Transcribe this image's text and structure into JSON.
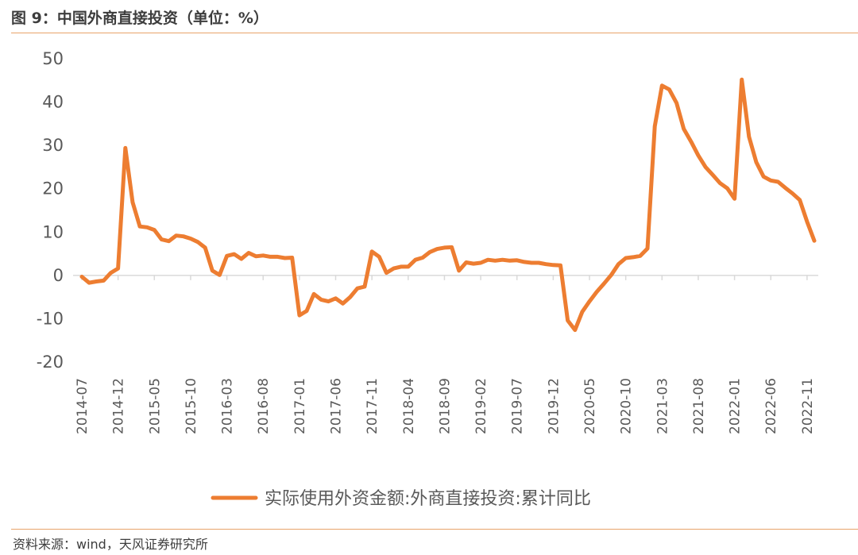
{
  "header": {
    "title": "图 9：中国外商直接投资（单位：%）"
  },
  "footer": {
    "source": "资料来源：wind，天风证券研究所"
  },
  "colors": {
    "line": "#ed7d31",
    "accent_rule": "#e8a46a",
    "axis": "#d9d9d9",
    "text": "#595959"
  },
  "chart_data": {
    "type": "line",
    "title": "",
    "xlabel": "",
    "ylabel": "",
    "ylim": [
      -20,
      50
    ],
    "yticks": [
      -20,
      -10,
      0,
      10,
      20,
      30,
      40,
      50
    ],
    "xtick_labels": [
      "2014-07",
      "2014-12",
      "2015-05",
      "2015-10",
      "2016-03",
      "2016-08",
      "2017-01",
      "2017-06",
      "2017-11",
      "2018-04",
      "2018-09",
      "2019-02",
      "2019-07",
      "2019-12",
      "2020-05",
      "2020-10",
      "2021-03",
      "2021-08",
      "2022-01",
      "2022-06",
      "2022-11"
    ],
    "grid": false,
    "legend_position": "bottom",
    "x": [
      "2014-07",
      "2014-08",
      "2014-09",
      "2014-10",
      "2014-11",
      "2014-12",
      "2015-01",
      "2015-02",
      "2015-03",
      "2015-04",
      "2015-05",
      "2015-06",
      "2015-07",
      "2015-08",
      "2015-09",
      "2015-10",
      "2015-11",
      "2015-12",
      "2016-01",
      "2016-02",
      "2016-03",
      "2016-04",
      "2016-05",
      "2016-06",
      "2016-07",
      "2016-08",
      "2016-09",
      "2016-10",
      "2016-11",
      "2016-12",
      "2017-01",
      "2017-02",
      "2017-03",
      "2017-04",
      "2017-05",
      "2017-06",
      "2017-07",
      "2017-08",
      "2017-09",
      "2017-10",
      "2017-11",
      "2017-12",
      "2018-01",
      "2018-02",
      "2018-03",
      "2018-04",
      "2018-05",
      "2018-06",
      "2018-07",
      "2018-08",
      "2018-09",
      "2018-10",
      "2018-11",
      "2018-12",
      "2019-01",
      "2019-02",
      "2019-03",
      "2019-04",
      "2019-05",
      "2019-06",
      "2019-07",
      "2019-08",
      "2019-09",
      "2019-10",
      "2019-11",
      "2019-12",
      "2020-01",
      "2020-02",
      "2020-03",
      "2020-04",
      "2020-05",
      "2020-06",
      "2020-07",
      "2020-08",
      "2020-09",
      "2020-10",
      "2020-11",
      "2020-12",
      "2021-01",
      "2021-02",
      "2021-03",
      "2021-04",
      "2021-05",
      "2021-06",
      "2021-07",
      "2021-08",
      "2021-09",
      "2021-10",
      "2021-11",
      "2021-12",
      "2022-01",
      "2022-02",
      "2022-03",
      "2022-04",
      "2022-05",
      "2022-06",
      "2022-07",
      "2022-08",
      "2022-09",
      "2022-10",
      "2022-11",
      "2022-12"
    ],
    "series": [
      {
        "name": "实际使用外资金额:外商直接投资:累计同比",
        "color": "#ed7d31",
        "values": [
          -0.3,
          -1.7,
          -1.4,
          -1.2,
          0.6,
          1.6,
          29.4,
          16.9,
          11.3,
          11.1,
          10.5,
          8.3,
          7.9,
          9.2,
          9.0,
          8.5,
          7.7,
          6.4,
          1.1,
          0.1,
          4.5,
          4.9,
          3.8,
          5.2,
          4.4,
          4.6,
          4.3,
          4.3,
          4.0,
          4.1,
          -9.2,
          -8.2,
          -4.3,
          -5.6,
          -6.0,
          -5.3,
          -6.5,
          -5.0,
          -3.0,
          -2.6,
          5.5,
          4.3,
          0.6,
          1.6,
          2.0,
          2.0,
          3.6,
          4.1,
          5.4,
          6.1,
          6.4,
          6.5,
          1.1,
          3.0,
          2.7,
          2.9,
          3.6,
          3.4,
          3.6,
          3.4,
          3.5,
          3.1,
          2.9,
          2.9,
          2.6,
          2.4,
          2.3,
          -10.4,
          -12.6,
          -8.4,
          -6.0,
          -3.8,
          -1.9,
          0.1,
          2.6,
          4.0,
          4.2,
          4.5,
          6.2,
          34.4,
          43.8,
          42.9,
          39.8,
          33.8,
          30.9,
          27.7,
          25.0,
          23.2,
          21.3,
          20.1,
          17.7,
          45.2,
          32.0,
          26.1,
          22.8,
          21.9,
          21.6,
          20.2,
          18.9,
          17.4,
          12.4,
          8.0
        ]
      }
    ]
  }
}
